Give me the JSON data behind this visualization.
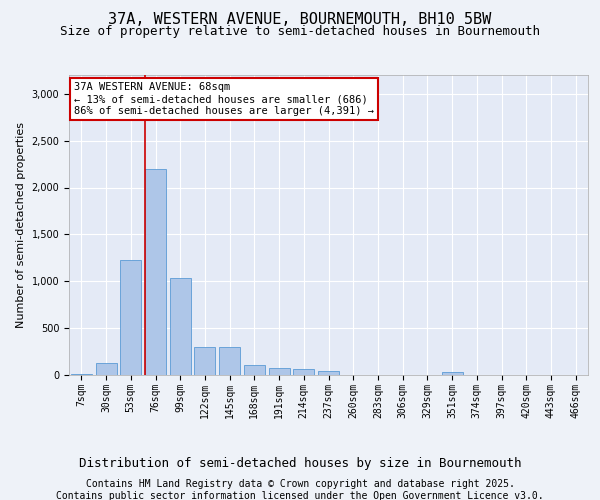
{
  "title_line1": "37A, WESTERN AVENUE, BOURNEMOUTH, BH10 5BW",
  "title_line2": "Size of property relative to semi-detached houses in Bournemouth",
  "xlabel": "Distribution of semi-detached houses by size in Bournemouth",
  "ylabel": "Number of semi-detached properties",
  "categories": [
    "7sqm",
    "30sqm",
    "53sqm",
    "76sqm",
    "99sqm",
    "122sqm",
    "145sqm",
    "168sqm",
    "191sqm",
    "214sqm",
    "237sqm",
    "260sqm",
    "283sqm",
    "306sqm",
    "329sqm",
    "351sqm",
    "374sqm",
    "397sqm",
    "420sqm",
    "443sqm",
    "466sqm"
  ],
  "values": [
    10,
    130,
    1230,
    2200,
    1030,
    300,
    300,
    110,
    75,
    65,
    45,
    0,
    0,
    0,
    0,
    30,
    0,
    0,
    0,
    0,
    0
  ],
  "bar_color": "#aec6e8",
  "bar_edge_color": "#5b9bd5",
  "vline_position": 2.57,
  "annotation_title": "37A WESTERN AVENUE: 68sqm",
  "annotation_line2": "← 13% of semi-detached houses are smaller (686)",
  "annotation_line3": "86% of semi-detached houses are larger (4,391) →",
  "vline_color": "#cc0000",
  "annotation_box_color": "#ffffff",
  "annotation_box_edge_color": "#cc0000",
  "ylim": [
    0,
    3200
  ],
  "yticks": [
    0,
    500,
    1000,
    1500,
    2000,
    2500,
    3000
  ],
  "footer_line1": "Contains HM Land Registry data © Crown copyright and database right 2025.",
  "footer_line2": "Contains public sector information licensed under the Open Government Licence v3.0.",
  "background_color": "#eef2f8",
  "plot_bg_color": "#e4eaf6",
  "grid_color": "#ffffff",
  "title_fontsize": 11,
  "subtitle_fontsize": 9,
  "footer_fontsize": 7,
  "tick_fontsize": 7,
  "ylabel_fontsize": 8,
  "xlabel_fontsize": 9,
  "annotation_fontsize": 7.5
}
